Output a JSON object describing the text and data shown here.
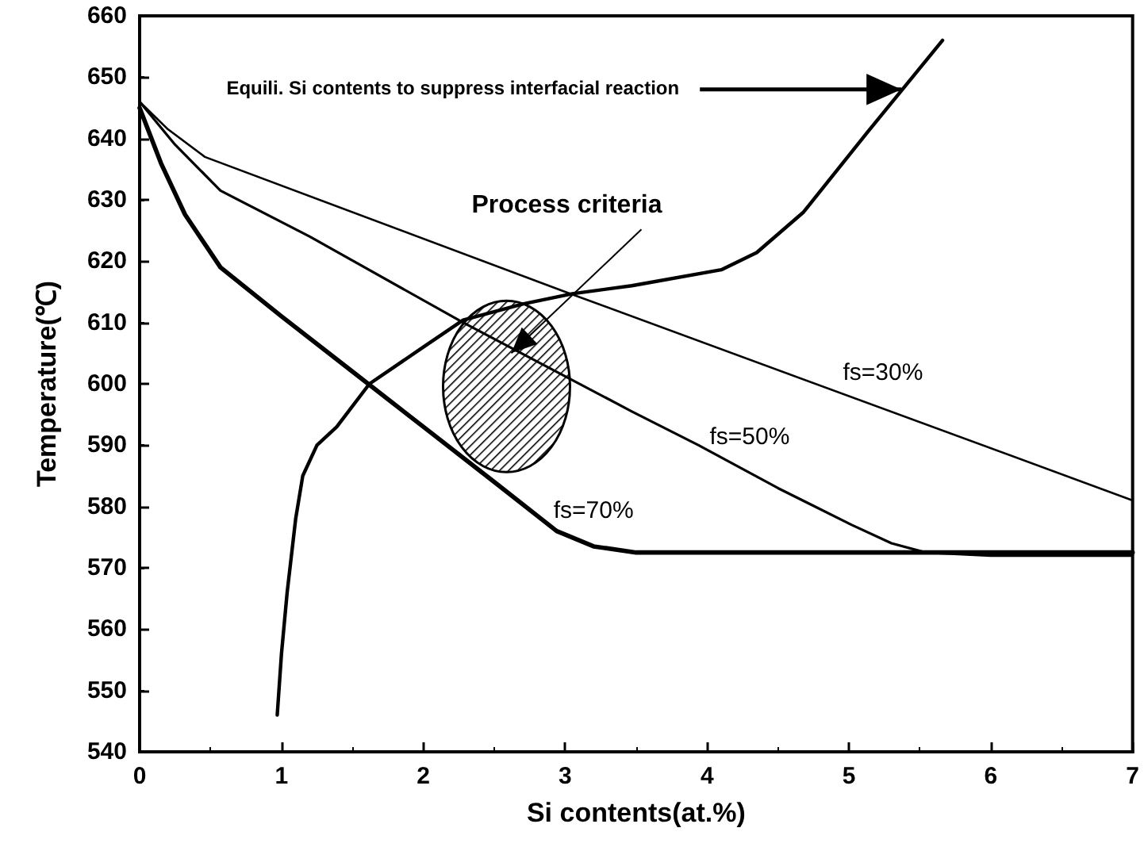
{
  "chart_data": {
    "type": "line",
    "xlabel": "Si contents(at.%)",
    "ylabel": "Temperature(℃)",
    "xlim": [
      0,
      7
    ],
    "xticks": [
      0,
      1,
      2,
      3,
      4,
      5,
      6,
      7
    ],
    "ylim": [
      540,
      660
    ],
    "yticks": [
      540,
      550,
      560,
      570,
      580,
      590,
      600,
      610,
      620,
      630,
      640,
      650,
      660
    ],
    "grid": false,
    "legend": false,
    "marker": "none",
    "line_style": "solid",
    "annotations": [
      {
        "text": "Equili. Si contents to suppress interfacial reaction",
        "x": 5.37,
        "y": 648
      },
      {
        "text": "Process criteria",
        "x": 2.62,
        "y": 605
      }
    ],
    "series": [
      {
        "name": "fs=30%",
        "color": "#000000",
        "x": [
          0,
          0.2,
          0.46,
          3,
          7
        ],
        "values": [
          646,
          641.5,
          637,
          615,
          581
        ]
      },
      {
        "name": "fs=50%",
        "color": "#000000",
        "x": [
          0,
          0.25,
          0.57,
          1.2,
          2.28,
          3.47,
          3.94,
          4.5,
          5.02,
          5.3,
          5.54,
          6,
          7
        ],
        "values": [
          646,
          639,
          631.5,
          624,
          610,
          595.5,
          590,
          583,
          577,
          574,
          572.5,
          572,
          572
        ]
      },
      {
        "name": "fs=70%",
        "color": "#000000",
        "x": [
          0,
          0.15,
          0.32,
          0.57,
          1,
          1.5,
          2,
          2.5,
          2.94,
          3.2,
          3.5,
          4,
          5,
          6,
          7
        ],
        "values": [
          645,
          636,
          627.6,
          619,
          611,
          602,
          593,
          584,
          576,
          573.5,
          572.5,
          572.5,
          572.5,
          572.5,
          572.5
        ]
      },
      {
        "color": "#000000",
        "x": [
          0.97,
          1.0,
          1.04,
          1.1,
          1.15,
          1.25,
          1.39,
          1.62,
          2.0,
          2.28,
          2.7,
          3.05,
          3.47,
          4.1,
          4.35,
          4.68,
          5.13,
          5.66
        ],
        "values": [
          546,
          556,
          566,
          578,
          585,
          590,
          593,
          600,
          606,
          610.4,
          613,
          614.7,
          616,
          618.6,
          621.4,
          628,
          641,
          656
        ]
      }
    ]
  }
}
